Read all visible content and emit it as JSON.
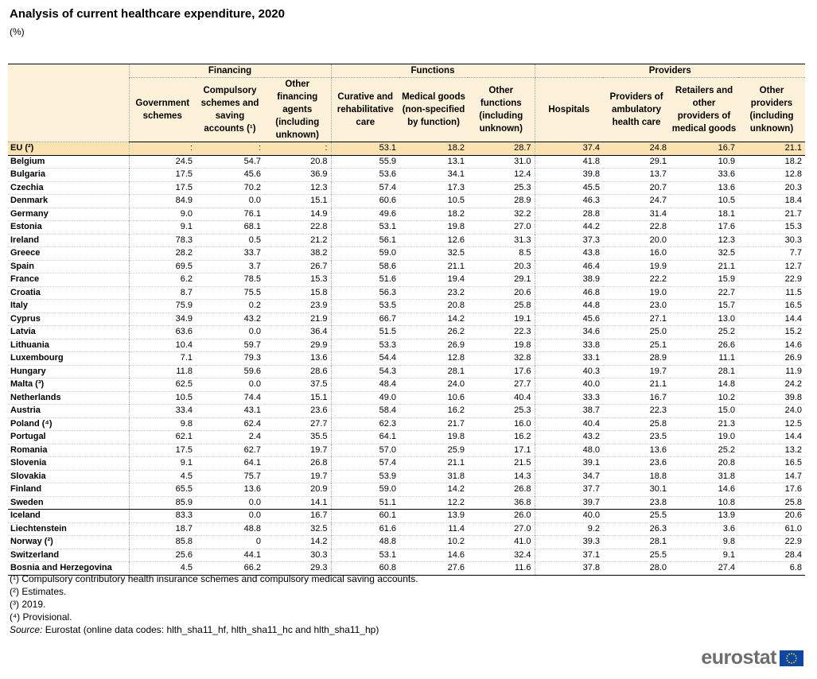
{
  "header": {
    "title": "Analysis of current healthcare expenditure, 2020",
    "unit": "(%)"
  },
  "table": {
    "groups": [
      "Financing",
      "Functions",
      "Providers"
    ],
    "columns": [
      "Government schemes",
      "Compulsory schemes and saving accounts (¹)",
      "Other financing agents (including unknown)",
      "Curative and rehabilitative care",
      "Medical goods (non-specified by function)",
      "Other functions (including unknown)",
      "Hospitals",
      "Providers of ambulatory health care",
      "Retailers and other providers of medical goods",
      "Other providers (including unknown)"
    ],
    "rows": [
      [
        "EU (²)",
        ":",
        ":",
        ":",
        "53.1",
        "18.2",
        "28.7",
        "37.4",
        "24.8",
        "16.7",
        "21.1"
      ],
      [
        "Belgium",
        "24.5",
        "54.7",
        "20.8",
        "55.9",
        "13.1",
        "31.0",
        "41.8",
        "29.1",
        "10.9",
        "18.2"
      ],
      [
        "Bulgaria",
        "17.5",
        "45.6",
        "36.9",
        "53.6",
        "34.1",
        "12.4",
        "39.8",
        "13.7",
        "33.6",
        "12.8"
      ],
      [
        "Czechia",
        "17.5",
        "70.2",
        "12.3",
        "57.4",
        "17.3",
        "25.3",
        "45.5",
        "20.7",
        "13.6",
        "20.3"
      ],
      [
        "Denmark",
        "84.9",
        "0.0",
        "15.1",
        "60.6",
        "10.5",
        "28.9",
        "46.3",
        "24.7",
        "10.5",
        "18.4"
      ],
      [
        "Germany",
        "9.0",
        "76.1",
        "14.9",
        "49.6",
        "18.2",
        "32.2",
        "28.8",
        "31.4",
        "18.1",
        "21.7"
      ],
      [
        "Estonia",
        "9.1",
        "68.1",
        "22.8",
        "53.1",
        "19.8",
        "27.0",
        "44.2",
        "22.8",
        "17.6",
        "15.3"
      ],
      [
        "Ireland",
        "78.3",
        "0.5",
        "21.2",
        "56.1",
        "12.6",
        "31.3",
        "37.3",
        "20.0",
        "12.3",
        "30.3"
      ],
      [
        "Greece",
        "28.2",
        "33.7",
        "38.2",
        "59.0",
        "32.5",
        "8.5",
        "43.8",
        "16.0",
        "32.5",
        "7.7"
      ],
      [
        "Spain",
        "69.5",
        "3.7",
        "26.7",
        "58.6",
        "21.1",
        "20.3",
        "46.4",
        "19.9",
        "21.1",
        "12.7"
      ],
      [
        "France",
        "6.2",
        "78.5",
        "15.3",
        "51.6",
        "19.4",
        "29.1",
        "38.9",
        "22.2",
        "15.9",
        "22.9"
      ],
      [
        "Croatia",
        "8.7",
        "75.5",
        "15.8",
        "56.3",
        "23.2",
        "20.6",
        "46.8",
        "19.0",
        "22.7",
        "11.5"
      ],
      [
        "Italy",
        "75.9",
        "0.2",
        "23.9",
        "53.5",
        "20.8",
        "25.8",
        "44.8",
        "23.0",
        "15.7",
        "16.5"
      ],
      [
        "Cyprus",
        "34.9",
        "43.2",
        "21.9",
        "66.7",
        "14.2",
        "19.1",
        "45.6",
        "27.1",
        "13.0",
        "14.4"
      ],
      [
        "Latvia",
        "63.6",
        "0.0",
        "36.4",
        "51.5",
        "26.2",
        "22.3",
        "34.6",
        "25.0",
        "25.2",
        "15.2"
      ],
      [
        "Lithuania",
        "10.4",
        "59.7",
        "29.9",
        "53.3",
        "26.9",
        "19.8",
        "33.8",
        "25.1",
        "26.6",
        "14.6"
      ],
      [
        "Luxembourg",
        "7.1",
        "79.3",
        "13.6",
        "54.4",
        "12.8",
        "32.8",
        "33.1",
        "28.9",
        "11.1",
        "26.9"
      ],
      [
        "Hungary",
        "11.8",
        "59.6",
        "28.6",
        "54.3",
        "28.1",
        "17.6",
        "40.3",
        "19.7",
        "28.1",
        "11.9"
      ],
      [
        "Malta (³)",
        "62.5",
        "0.0",
        "37.5",
        "48.4",
        "24.0",
        "27.7",
        "40.0",
        "21.1",
        "14.8",
        "24.2"
      ],
      [
        "Netherlands",
        "10.5",
        "74.4",
        "15.1",
        "49.0",
        "10.6",
        "40.4",
        "33.3",
        "16.7",
        "10.2",
        "39.8"
      ],
      [
        "Austria",
        "33.4",
        "43.1",
        "23.6",
        "58.4",
        "16.2",
        "25.3",
        "38.7",
        "22.3",
        "15.0",
        "24.0"
      ],
      [
        "Poland (⁴)",
        "9.8",
        "62.4",
        "27.7",
        "62.3",
        "21.7",
        "16.0",
        "40.4",
        "25.8",
        "21.3",
        "12.5"
      ],
      [
        "Portugal",
        "62.1",
        "2.4",
        "35.5",
        "64.1",
        "19.8",
        "16.2",
        "43.2",
        "23.5",
        "19.0",
        "14.4"
      ],
      [
        "Romania",
        "17.5",
        "62.7",
        "19.7",
        "57.0",
        "25.9",
        "17.1",
        "48.0",
        "13.6",
        "25.2",
        "13.2"
      ],
      [
        "Slovenia",
        "9.1",
        "64.1",
        "26.8",
        "57.4",
        "21.1",
        "21.5",
        "39.1",
        "23.6",
        "20.8",
        "16.5"
      ],
      [
        "Slovakia",
        "4.5",
        "75.7",
        "19.7",
        "53.9",
        "31.8",
        "14.3",
        "34.7",
        "18.8",
        "31.8",
        "14.7"
      ],
      [
        "Finland",
        "65.5",
        "13.6",
        "20.9",
        "59.0",
        "14.2",
        "26.8",
        "37.7",
        "30.1",
        "14.6",
        "17.6"
      ],
      [
        "Sweden",
        "85.9",
        "0.0",
        "14.1",
        "51.1",
        "12.2",
        "36.8",
        "39.7",
        "23.8",
        "10.8",
        "25.8"
      ],
      [
        "Iceland",
        "83.3",
        "0.0",
        "16.7",
        "60.1",
        "13.9",
        "26.0",
        "40.0",
        "25.5",
        "13.9",
        "20.6"
      ],
      [
        "Liechtenstein",
        "18.7",
        "48.8",
        "32.5",
        "61.6",
        "11.4",
        "27.0",
        "9.2",
        "26.3",
        "3.6",
        "61.0"
      ],
      [
        "Norway (²)",
        "85.8",
        "0",
        "14.2",
        "48.8",
        "10.2",
        "41.0",
        "39.3",
        "28.1",
        "9.8",
        "22.9"
      ],
      [
        "Switzerland",
        "25.6",
        "44.1",
        "30.3",
        "53.1",
        "14.6",
        "32.4",
        "37.1",
        "25.5",
        "9.1",
        "28.4"
      ],
      [
        "Bosnia and Herzegovina",
        "4.5",
        "66.2",
        "29.3",
        "60.8",
        "27.6",
        "11.6",
        "37.8",
        "28.0",
        "27.4",
        "6.8"
      ]
    ]
  },
  "footnotes": [
    "(¹) Compulsory contributory health insurance schemes and compulsory medical saving accounts.",
    "(²) Estimates.",
    "(³) 2019.",
    "(⁴) Provisional."
  ],
  "source": {
    "label": "Source:",
    "text": "Eurostat (online data codes: hlth_sha11_hf, hlth_sha11_hc and hlth_sha11_hp)"
  },
  "logo": "eurostat"
}
